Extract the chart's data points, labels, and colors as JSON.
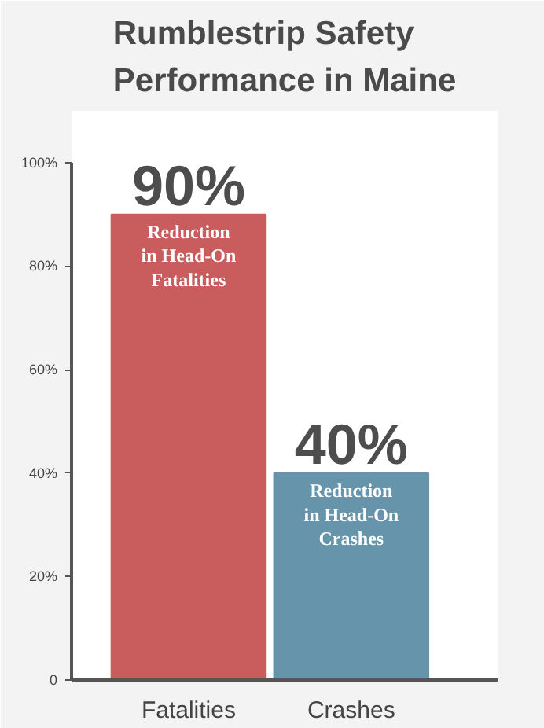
{
  "chart_data": {
    "type": "bar",
    "title": "Rumblestrip Safety Performance in Maine",
    "categories": [
      "Fatalities",
      "Crashes"
    ],
    "values": [
      90,
      40
    ],
    "colors": [
      "#c95c5c",
      "#6594ab"
    ],
    "value_labels": [
      "90%",
      "40%"
    ],
    "annotations": [
      "Reduction\nin Head-On\nFatalities",
      "Reduction\nin Head-On\nCrashes"
    ],
    "ylim": [
      0,
      100
    ],
    "yticks": [
      {
        "value": 0,
        "label": "0"
      },
      {
        "value": 20,
        "label": "20%"
      },
      {
        "value": 40,
        "label": "40%"
      },
      {
        "value": 60,
        "label": "60%"
      },
      {
        "value": 80,
        "label": "80%"
      },
      {
        "value": 100,
        "label": "100%"
      }
    ],
    "grid": false
  }
}
